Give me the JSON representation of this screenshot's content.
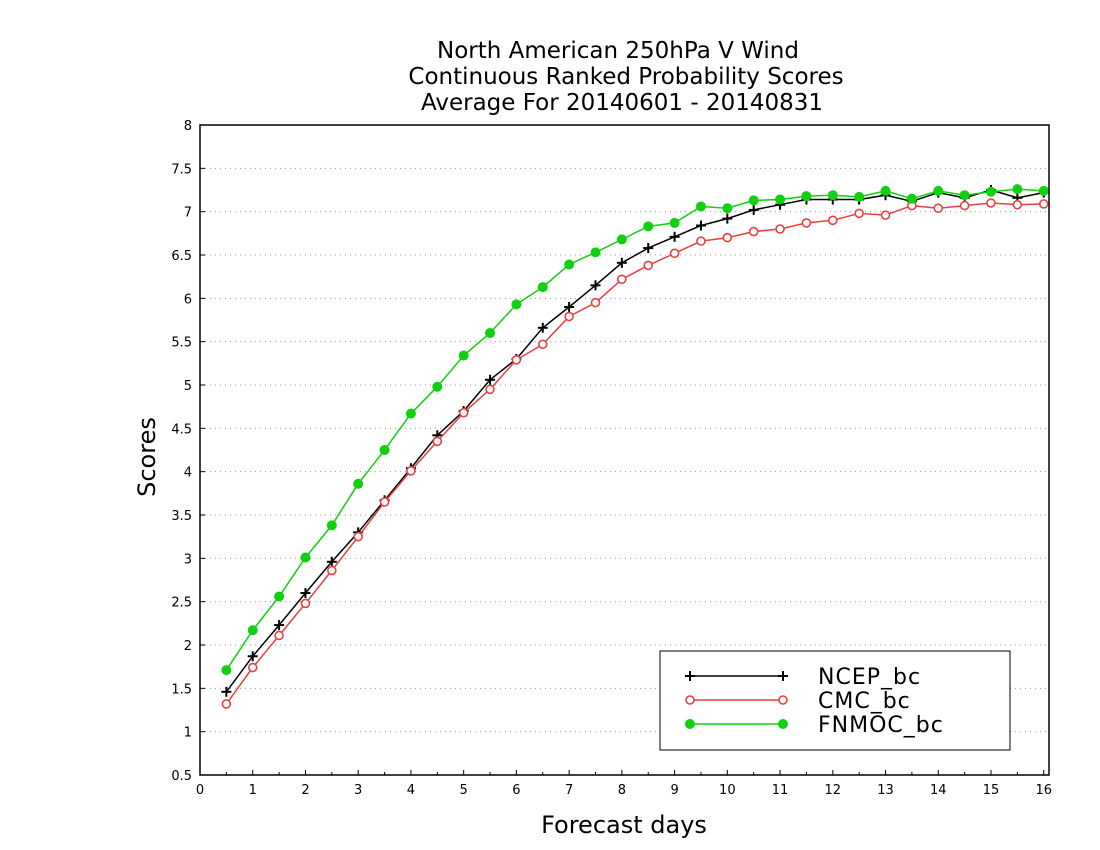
{
  "chart_data": {
    "type": "line",
    "title": [
      "North American 250hPa V Wind",
      "Continuous Ranked Probability Scores",
      "Average For 20140601 - 20140831"
    ],
    "xlabel": "Forecast days",
    "ylabel": "Scores",
    "xlim": [
      0,
      16.1
    ],
    "ylim": [
      0.5,
      8
    ],
    "xticks": [
      0,
      1,
      2,
      3,
      4,
      5,
      6,
      7,
      8,
      9,
      10,
      11,
      12,
      13,
      14,
      15,
      16
    ],
    "yticks": [
      0.5,
      1,
      1.5,
      2,
      2.5,
      3,
      3.5,
      4,
      4.5,
      5,
      5.5,
      6,
      6.5,
      7,
      7.5,
      8
    ],
    "ytick_labels": [
      "0.5",
      "1",
      "1.5",
      "2",
      "2.5",
      "3",
      "3.5",
      "4",
      "4.5",
      "5",
      "5.5",
      "6",
      "6.5",
      "7",
      "7.5",
      "8"
    ],
    "grid": "horizontal dotted",
    "legend_position": "bottom-right",
    "x": [
      0.5,
      1,
      1.5,
      2,
      2.5,
      3,
      3.5,
      4,
      4.5,
      5,
      5.5,
      6,
      6.5,
      7,
      7.5,
      8,
      8.5,
      9,
      9.5,
      10,
      10.5,
      11,
      11.5,
      12,
      12.5,
      13,
      13.5,
      14,
      14.5,
      15,
      15.5,
      16
    ],
    "series": [
      {
        "name": "NCEP_bc",
        "color": "#000000",
        "marker": "plus",
        "values": [
          1.46,
          1.87,
          2.23,
          2.6,
          2.96,
          3.3,
          3.67,
          4.04,
          4.42,
          4.7,
          5.06,
          5.3,
          5.66,
          5.9,
          6.15,
          6.41,
          6.58,
          6.71,
          6.84,
          6.92,
          7.02,
          7.08,
          7.14,
          7.14,
          7.14,
          7.19,
          7.12,
          7.22,
          7.16,
          7.25,
          7.16,
          7.22
        ]
      },
      {
        "name": "CMC_bc",
        "color": "#e8403f",
        "marker": "open-circle",
        "values": [
          1.32,
          1.74,
          2.11,
          2.48,
          2.86,
          3.25,
          3.65,
          4.01,
          4.35,
          4.68,
          4.95,
          5.29,
          5.47,
          5.79,
          5.95,
          6.22,
          6.38,
          6.52,
          6.66,
          6.7,
          6.77,
          6.8,
          6.87,
          6.9,
          6.98,
          6.96,
          7.07,
          7.04,
          7.07,
          7.1,
          7.08,
          7.09
        ]
      },
      {
        "name": "FNMOC_bc",
        "color": "#10d010",
        "marker": "filled-circle",
        "values": [
          1.71,
          2.17,
          2.56,
          3.01,
          3.38,
          3.86,
          4.25,
          4.67,
          4.98,
          5.34,
          5.6,
          5.93,
          6.13,
          6.39,
          6.53,
          6.68,
          6.83,
          6.87,
          7.06,
          7.04,
          7.13,
          7.14,
          7.18,
          7.19,
          7.17,
          7.24,
          7.15,
          7.24,
          7.19,
          7.23,
          7.26,
          7.24
        ]
      }
    ]
  }
}
